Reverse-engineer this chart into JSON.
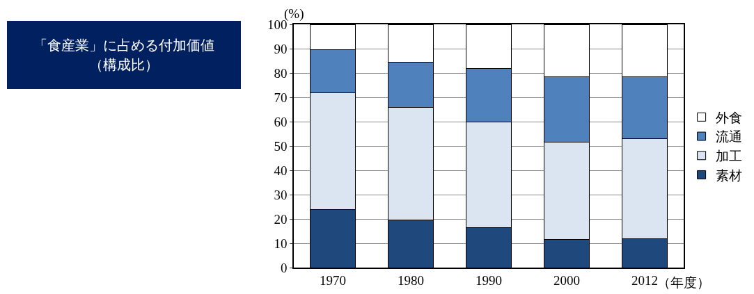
{
  "chart_data": {
    "type": "bar",
    "title": "「食産業」に占める付加価値（構成比）",
    "ylabel": "(%)",
    "xlabel": "（年度）",
    "categories": [
      "1970",
      "1980",
      "1990",
      "2000",
      "2012"
    ],
    "series": [
      {
        "name": "素材",
        "color": "#1f497d",
        "values": [
          24,
          19.5,
          16.5,
          11.5,
          12
        ]
      },
      {
        "name": "加工",
        "color": "#dbe5f1",
        "values": [
          48,
          46.5,
          43.5,
          40,
          41
        ]
      },
      {
        "name": "流通",
        "color": "#4f81bd",
        "values": [
          17.5,
          18.5,
          22,
          27,
          25.5
        ]
      },
      {
        "name": "外食",
        "color": "#ffffff",
        "values": [
          10.5,
          15.5,
          18,
          21.5,
          21.5
        ]
      }
    ],
    "stacked": true,
    "ylim": [
      0,
      100
    ],
    "yticks": [
      0,
      10,
      20,
      30,
      40,
      50,
      60,
      70,
      80,
      90,
      100
    ],
    "grid": "y",
    "legend": "right"
  }
}
